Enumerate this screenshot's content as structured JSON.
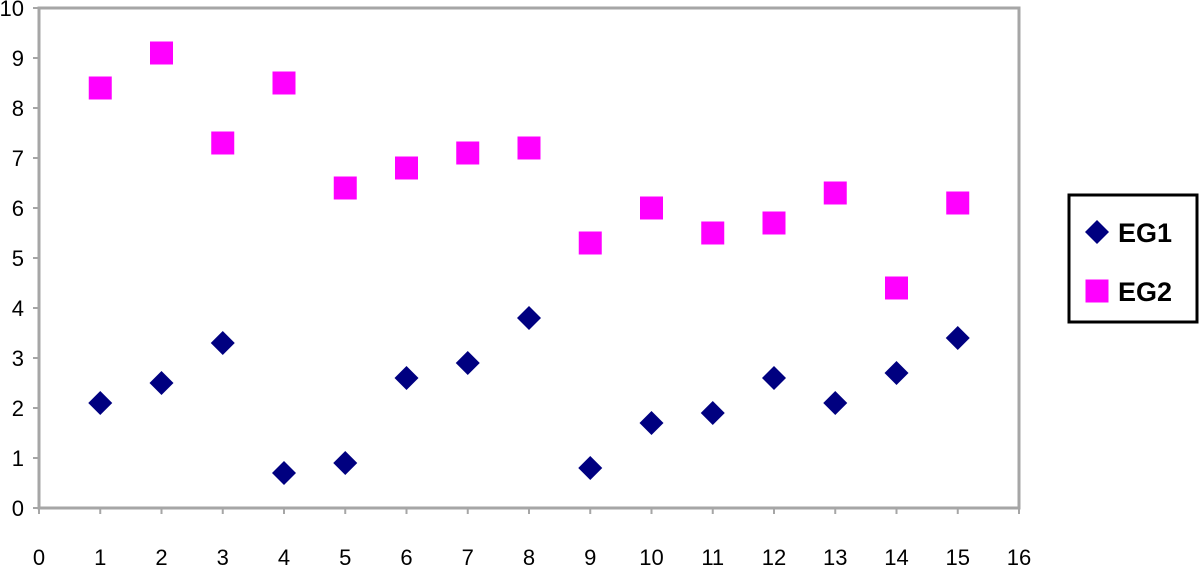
{
  "chart_data": {
    "type": "scatter",
    "title": "",
    "xlabel": "",
    "ylabel": "",
    "xlim": [
      0,
      16
    ],
    "ylim": [
      0,
      10
    ],
    "x_ticks": [
      0,
      1,
      2,
      3,
      4,
      5,
      6,
      7,
      8,
      9,
      10,
      11,
      12,
      13,
      14,
      15,
      16
    ],
    "y_ticks": [
      0,
      1,
      2,
      3,
      4,
      5,
      6,
      7,
      8,
      9,
      10
    ],
    "grid": false,
    "legend_position": "right",
    "series": [
      {
        "name": "EG1",
        "marker": "diamond",
        "color": "#000080",
        "x": [
          1,
          2,
          3,
          4,
          5,
          6,
          7,
          8,
          9,
          10,
          11,
          12,
          13,
          14,
          15
        ],
        "y": [
          2.1,
          2.5,
          3.3,
          0.7,
          0.9,
          2.6,
          2.9,
          3.8,
          0.8,
          1.7,
          1.9,
          2.6,
          2.1,
          2.7,
          3.4
        ]
      },
      {
        "name": "EG2",
        "marker": "square",
        "color": "#FF00FF",
        "x": [
          1,
          2,
          3,
          4,
          5,
          6,
          7,
          8,
          9,
          10,
          11,
          12,
          13,
          14,
          15
        ],
        "y": [
          8.4,
          9.1,
          7.3,
          8.5,
          6.4,
          6.8,
          7.1,
          7.2,
          5.3,
          6.0,
          5.5,
          5.7,
          6.3,
          4.4,
          6.1
        ]
      }
    ]
  }
}
